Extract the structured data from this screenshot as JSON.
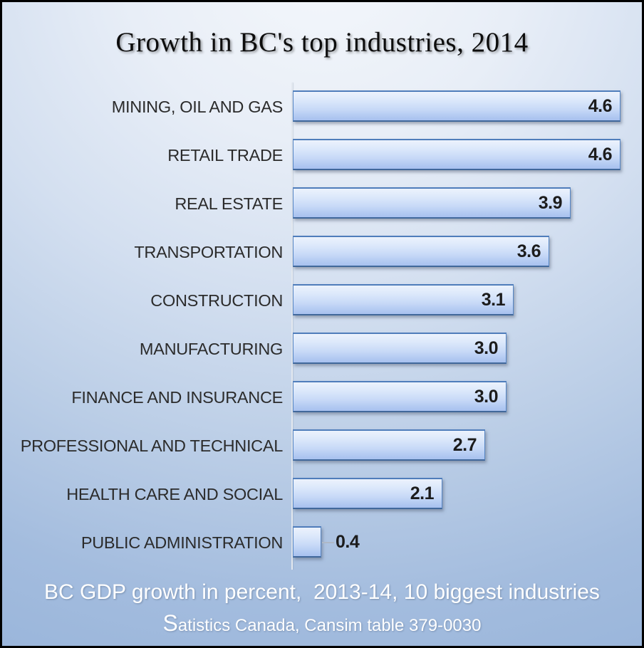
{
  "title": "Growth in BC's top industries, 2014",
  "footer": {
    "line1": "BC GDP growth in percent,  2013-14, 10 biggest industries",
    "line2_initial": "S",
    "line2_rest": "atistics Canada, Cansim table 379-0030"
  },
  "colors": {
    "background_top": "#f4f7fb",
    "background_bottom": "#95b2d9",
    "bar_fill_top": "#ecf2fc",
    "bar_fill_bottom": "#a8c1ef",
    "bar_border": "#5585c4",
    "bar_border_bottom": "#41689b",
    "axis_line": "#e3e8ef",
    "title_text": "#0d0d0d",
    "label_text": "#2b2b2b",
    "value_text": "#1c1c1c",
    "footer_text": "#ffffff",
    "frame_border": "#000000"
  },
  "chart_data": {
    "type": "bar",
    "orientation": "horizontal",
    "title": "Growth in BC's top industries, 2014",
    "xlabel": "",
    "ylabel": "",
    "categories": [
      "MINING, OIL AND GAS",
      "RETAIL TRADE",
      "REAL ESTATE",
      "TRANSPORTATION",
      "CONSTRUCTION",
      "MANUFACTURING",
      "FINANCE AND INSURANCE",
      "PROFESSIONAL AND TECHNICAL",
      "HEALTH CARE AND SOCIAL",
      "PUBLIC ADMINISTRATION"
    ],
    "values": [
      4.6,
      4.6,
      3.9,
      3.6,
      3.1,
      3.0,
      3.0,
      2.7,
      2.1,
      0.4
    ],
    "value_labels": [
      "4.6",
      "4.6",
      "3.9",
      "3.6",
      "3.1",
      "3.0",
      "3.0",
      "2.7",
      "2.1",
      "0.4"
    ],
    "xlim": [
      0,
      4.6
    ],
    "grid": false,
    "legend": false,
    "data_labels": "end of bar"
  }
}
